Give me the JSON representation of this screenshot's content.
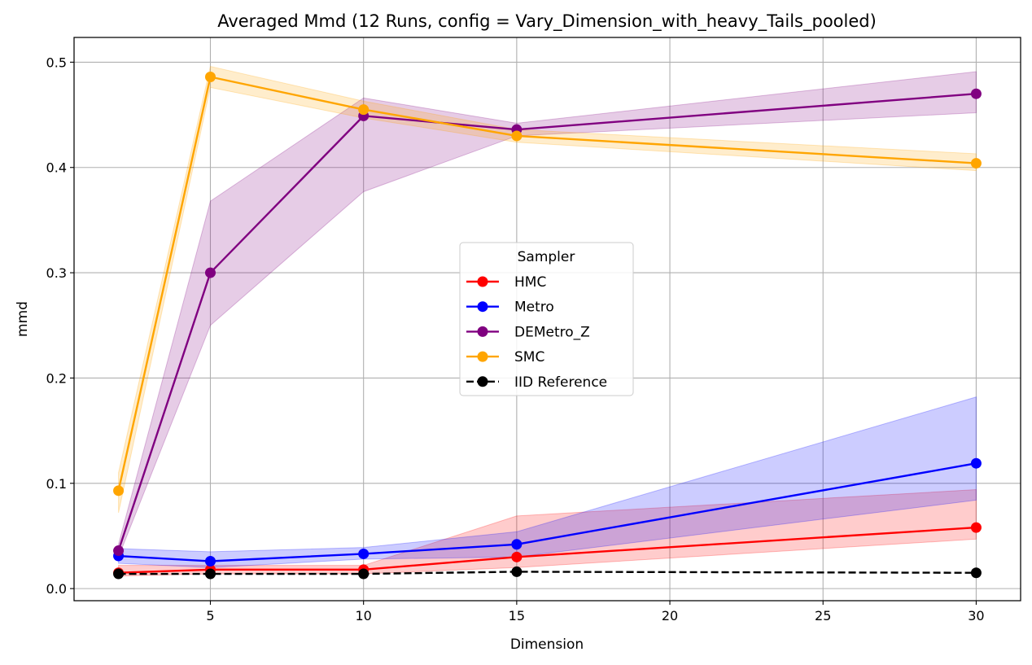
{
  "chart_data": {
    "type": "line",
    "title": "Averaged Mmd (12 Runs, config = Vary_Dimension_with_heavy_Tails_pooled)",
    "xlabel": "Dimension",
    "ylabel": "mmd",
    "xlim": [
      0.55,
      31.45
    ],
    "ylim": [
      -0.0115,
      0.5235
    ],
    "xticks": [
      5,
      10,
      15,
      20,
      25,
      30
    ],
    "yticks": [
      0.0,
      0.1,
      0.2,
      0.3,
      0.4,
      0.5
    ],
    "ytick_labels": [
      "0.0",
      "0.1",
      "0.2",
      "0.3",
      "0.4",
      "0.5"
    ],
    "grid": true,
    "legend": {
      "title": "Sampler",
      "placement": "center"
    },
    "x": [
      2,
      5,
      10,
      15,
      30
    ],
    "series": [
      {
        "name": "HMC",
        "color": "#ff0000",
        "dashed": false,
        "values": [
          0.015,
          0.018,
          0.018,
          0.03,
          0.058
        ],
        "lower": [
          0.012,
          0.014,
          0.014,
          0.02,
          0.047
        ],
        "upper": [
          0.022,
          0.022,
          0.022,
          0.069,
          0.094
        ]
      },
      {
        "name": "Metro",
        "color": "#0000ff",
        "dashed": false,
        "values": [
          0.031,
          0.026,
          0.033,
          0.042,
          0.119
        ],
        "lower": [
          0.024,
          0.02,
          0.028,
          0.03,
          0.084
        ],
        "upper": [
          0.038,
          0.035,
          0.039,
          0.054,
          0.182
        ]
      },
      {
        "name": "DEMetro_Z",
        "color": "#800080",
        "dashed": false,
        "values": [
          0.036,
          0.3,
          0.449,
          0.436,
          0.47
        ],
        "lower": [
          0.03,
          0.25,
          0.377,
          0.43,
          0.452
        ],
        "upper": [
          0.042,
          0.368,
          0.466,
          0.442,
          0.491
        ]
      },
      {
        "name": "SMC",
        "color": "#ffa500",
        "dashed": false,
        "values": [
          0.093,
          0.486,
          0.455,
          0.43,
          0.404
        ],
        "lower": [
          0.072,
          0.476,
          0.447,
          0.424,
          0.397
        ],
        "upper": [
          0.11,
          0.496,
          0.463,
          0.436,
          0.413
        ]
      },
      {
        "name": "IID Reference",
        "color": "#000000",
        "dashed": true,
        "values": [
          0.014,
          0.014,
          0.014,
          0.016,
          0.015
        ],
        "lower": null,
        "upper": null
      }
    ]
  }
}
